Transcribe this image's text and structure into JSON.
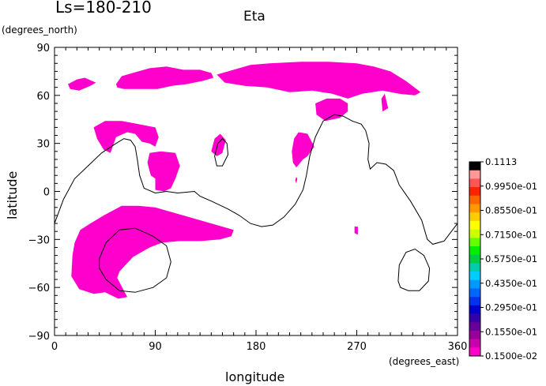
{
  "chart_data": {
    "type": "heatmap",
    "title": "Eta",
    "subtitle": "Ls=180-210",
    "xlabel": "longitude",
    "ylabel": "latitude",
    "x_unit": "(degrees_east)",
    "y_unit": "(degrees_north)",
    "xlim": [
      0,
      360
    ],
    "ylim": [
      -90,
      90
    ],
    "x_ticks": [
      0,
      90,
      180,
      270,
      360
    ],
    "x_tick_labels": [
      "0",
      "90",
      "180",
      "270",
      "360"
    ],
    "y_ticks": [
      -90,
      -60,
      -30,
      0,
      30,
      60,
      90
    ],
    "y_tick_labels": [
      "−90",
      "−60",
      "−30",
      "0",
      "30",
      "60",
      "90"
    ],
    "fill_color": "#ff00cc",
    "colorbar": {
      "labels": [
        "0.1113",
        "0.9950e-01",
        "0.8550e-01",
        "0.7150e-01",
        "0.5750e-01",
        "0.4350e-01",
        "0.2950e-01",
        "0.1550e-01",
        "0.1500e-02"
      ],
      "colors_top_to_bottom": [
        "#000000",
        "#ff9999",
        "#ff5555",
        "#ff2200",
        "#ff6600",
        "#ff9900",
        "#ffcc00",
        "#ffff00",
        "#ccff00",
        "#66ff00",
        "#00ee00",
        "#00cc44",
        "#00ccaa",
        "#00ccff",
        "#0099ff",
        "#0066ff",
        "#0033ee",
        "#0000cc",
        "#3300aa",
        "#660099",
        "#990099",
        "#cc00aa",
        "#ff00cc"
      ]
    },
    "regions_at_lowest_level": [
      {
        "name": "north-west-blob",
        "points": [
          [
            12,
            67
          ],
          [
            20,
            70
          ],
          [
            27,
            71
          ],
          [
            37,
            68
          ],
          [
            32,
            66
          ],
          [
            22,
            63
          ],
          [
            14,
            64
          ]
        ]
      },
      {
        "name": "northern-band-west",
        "points": [
          [
            55,
            67
          ],
          [
            60,
            72
          ],
          [
            70,
            74
          ],
          [
            85,
            77
          ],
          [
            100,
            78
          ],
          [
            115,
            76
          ],
          [
            130,
            76
          ],
          [
            140,
            74
          ],
          [
            142,
            71
          ],
          [
            132,
            69
          ],
          [
            118,
            67
          ],
          [
            105,
            66
          ],
          [
            92,
            64
          ],
          [
            78,
            64
          ],
          [
            62,
            64
          ],
          [
            56,
            65
          ]
        ]
      },
      {
        "name": "northern-band-east",
        "points": [
          [
            145,
            73
          ],
          [
            160,
            76
          ],
          [
            175,
            79
          ],
          [
            192,
            80
          ],
          [
            220,
            81
          ],
          [
            245,
            81
          ],
          [
            270,
            80
          ],
          [
            285,
            78
          ],
          [
            300,
            75
          ],
          [
            314,
            69
          ],
          [
            327,
            62
          ],
          [
            322,
            60
          ],
          [
            308,
            61
          ],
          [
            293,
            63
          ],
          [
            275,
            61
          ],
          [
            262,
            58
          ],
          [
            248,
            61
          ],
          [
            230,
            63
          ],
          [
            210,
            62
          ],
          [
            190,
            65
          ],
          [
            170,
            66
          ],
          [
            152,
            68
          ]
        ]
      },
      {
        "name": "northern-small-patch",
        "points": [
          [
            292,
            58
          ],
          [
            295,
            61
          ],
          [
            298,
            52
          ],
          [
            293,
            50
          ]
        ]
      },
      {
        "name": "north-central-patch",
        "points": [
          [
            233,
            55
          ],
          [
            243,
            58
          ],
          [
            255,
            58
          ],
          [
            262,
            55
          ],
          [
            262,
            50
          ],
          [
            255,
            46
          ],
          [
            242,
            44
          ],
          [
            234,
            48
          ]
        ]
      },
      {
        "name": "west-mid-patch",
        "points": [
          [
            35,
            40
          ],
          [
            45,
            44
          ],
          [
            60,
            44
          ],
          [
            75,
            42
          ],
          [
            90,
            40
          ],
          [
            93,
            34
          ],
          [
            90,
            28
          ],
          [
            85,
            30
          ],
          [
            78,
            31
          ],
          [
            72,
            36
          ],
          [
            65,
            37
          ],
          [
            55,
            34
          ],
          [
            50,
            24
          ],
          [
            44,
            26
          ],
          [
            38,
            33
          ]
        ]
      },
      {
        "name": "equatorial-west-patch",
        "points": [
          [
            83,
            18
          ],
          [
            85,
            24
          ],
          [
            95,
            25
          ],
          [
            108,
            24
          ],
          [
            112,
            16
          ],
          [
            108,
            8
          ],
          [
            104,
            2
          ],
          [
            98,
            0
          ],
          [
            90,
            1
          ],
          [
            90,
            8
          ],
          [
            86,
            10
          ]
        ]
      },
      {
        "name": "small-patch-150",
        "points": [
          [
            140,
            25
          ],
          [
            143,
            33
          ],
          [
            148,
            36
          ],
          [
            153,
            32
          ],
          [
            150,
            24
          ],
          [
            145,
            22
          ]
        ]
      },
      {
        "name": "central-patch-220",
        "points": [
          [
            212,
            25
          ],
          [
            214,
            33
          ],
          [
            218,
            37
          ],
          [
            226,
            36
          ],
          [
            232,
            28
          ],
          [
            226,
            22
          ],
          [
            222,
            20
          ],
          [
            216,
            15
          ],
          [
            213,
            18
          ]
        ]
      },
      {
        "name": "tiny-dot-215",
        "points": [
          [
            215,
            7
          ],
          [
            216,
            9
          ],
          [
            217,
            8
          ],
          [
            216,
            5
          ]
        ]
      },
      {
        "name": "southern-band",
        "points": [
          [
            16,
            -40
          ],
          [
            18,
            -32
          ],
          [
            23,
            -24
          ],
          [
            32,
            -20
          ],
          [
            44,
            -15
          ],
          [
            60,
            -9
          ],
          [
            75,
            -9
          ],
          [
            90,
            -10
          ],
          [
            110,
            -14
          ],
          [
            130,
            -18
          ],
          [
            150,
            -22
          ],
          [
            160,
            -24
          ],
          [
            158,
            -28
          ],
          [
            148,
            -30
          ],
          [
            130,
            -31
          ],
          [
            112,
            -31
          ],
          [
            96,
            -32
          ],
          [
            85,
            -35
          ],
          [
            70,
            -41
          ],
          [
            58,
            -50
          ],
          [
            56,
            -54
          ],
          [
            62,
            -62
          ],
          [
            65,
            -66
          ],
          [
            57,
            -67
          ],
          [
            45,
            -63
          ],
          [
            35,
            -64
          ],
          [
            22,
            -61
          ],
          [
            15,
            -53
          ]
        ]
      },
      {
        "name": "small-patch-270",
        "points": [
          [
            268,
            -22
          ],
          [
            271,
            -22
          ],
          [
            271,
            -27
          ],
          [
            268,
            -26
          ]
        ]
      }
    ],
    "contour_lines": [
      {
        "name": "equatorial-contour",
        "points": [
          [
            0,
            -20
          ],
          [
            8,
            -5
          ],
          [
            18,
            8
          ],
          [
            30,
            16
          ],
          [
            42,
            24
          ],
          [
            55,
            30
          ],
          [
            62,
            33
          ],
          [
            68,
            32
          ],
          [
            72,
            28
          ],
          [
            74,
            20
          ],
          [
            76,
            10
          ],
          [
            80,
            2
          ],
          [
            90,
            -1
          ],
          [
            100,
            0
          ],
          [
            110,
            -1
          ],
          [
            125,
            0
          ],
          [
            130,
            -3
          ],
          [
            140,
            -6
          ],
          [
            155,
            -11
          ],
          [
            165,
            -15
          ],
          [
            175,
            -20
          ],
          [
            185,
            -22
          ],
          [
            195,
            -21
          ],
          [
            205,
            -16
          ],
          [
            215,
            -8
          ],
          [
            222,
            1
          ],
          [
            225,
            10
          ],
          [
            228,
            22
          ],
          [
            233,
            34
          ],
          [
            240,
            44
          ],
          [
            250,
            48
          ],
          [
            258,
            47
          ],
          [
            266,
            44
          ],
          [
            274,
            42
          ],
          [
            278,
            38
          ],
          [
            281,
            30
          ],
          [
            280,
            20
          ],
          [
            282,
            14
          ],
          [
            288,
            18
          ],
          [
            296,
            17
          ],
          [
            303,
            13
          ],
          [
            308,
            4
          ],
          [
            318,
            -6
          ],
          [
            328,
            -18
          ],
          [
            333,
            -30
          ],
          [
            338,
            -33
          ],
          [
            348,
            -31
          ],
          [
            360,
            -20
          ]
        ]
      },
      {
        "name": "small-loop-150",
        "points": [
          [
            143,
            22
          ],
          [
            146,
            30
          ],
          [
            150,
            33
          ],
          [
            154,
            30
          ],
          [
            155,
            23
          ],
          [
            150,
            16
          ],
          [
            145,
            16
          ]
        ]
      },
      {
        "name": "south-west-loop",
        "points": [
          [
            40,
            -42
          ],
          [
            46,
            -32
          ],
          [
            58,
            -24
          ],
          [
            72,
            -23
          ],
          [
            88,
            -28
          ],
          [
            100,
            -34
          ],
          [
            104,
            -44
          ],
          [
            100,
            -54
          ],
          [
            88,
            -60
          ],
          [
            72,
            -63
          ],
          [
            58,
            -62
          ],
          [
            46,
            -55
          ],
          [
            40,
            -48
          ]
        ]
      },
      {
        "name": "south-east-loop",
        "points": [
          [
            307,
            -56
          ],
          [
            308,
            -46
          ],
          [
            314,
            -38
          ],
          [
            322,
            -36
          ],
          [
            330,
            -40
          ],
          [
            335,
            -48
          ],
          [
            334,
            -56
          ],
          [
            326,
            -62
          ],
          [
            316,
            -62
          ],
          [
            309,
            -60
          ]
        ]
      }
    ]
  }
}
